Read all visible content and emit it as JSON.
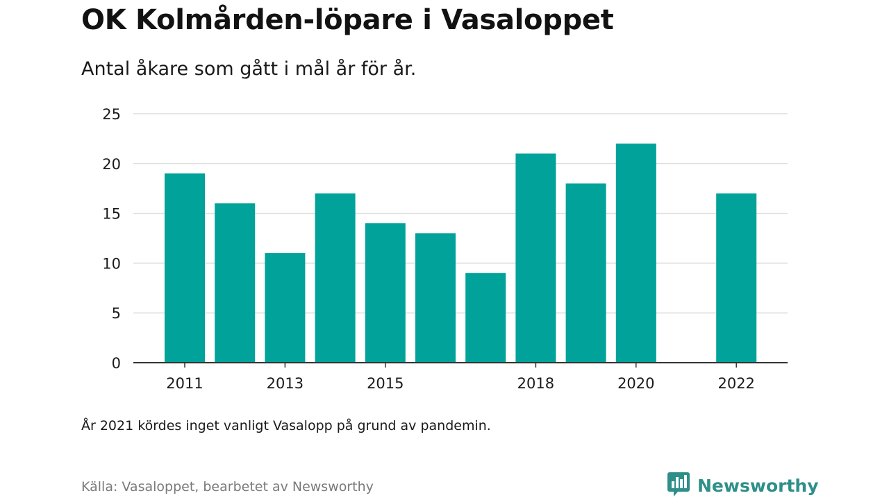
{
  "header": {
    "title": "OK Kolmården-löpare i Vasaloppet",
    "subtitle": "Antal åkare som gått i mål år för år."
  },
  "footer": {
    "note": "År 2021 kördes inget vanligt Vasalopp på grund av pandemin.",
    "source": "Källa: Vasaloppet, bearbetet av Newsworthy",
    "brand": "Newsworthy"
  },
  "colors": {
    "bar": "#00a29a",
    "grid": "#dddddd",
    "axis": "#333333",
    "brand": "#2e8f89"
  },
  "chart_data": {
    "type": "bar",
    "title": "OK Kolmården-löpare i Vasaloppet",
    "subtitle": "Antal åkare som gått i mål år för år.",
    "categories": [
      2011,
      2012,
      2013,
      2014,
      2015,
      2016,
      2017,
      2018,
      2019,
      2020,
      2021,
      2022
    ],
    "values": [
      19,
      16,
      11,
      17,
      14,
      13,
      9,
      21,
      18,
      22,
      null,
      17
    ],
    "x_tick_labels": [
      "2011",
      "2013",
      "2015",
      "2018",
      "2020",
      "2022"
    ],
    "y_ticks": [
      0,
      5,
      10,
      15,
      20,
      25
    ],
    "ylim": [
      0,
      25
    ],
    "grid": true,
    "legend": "none",
    "xlabel": "",
    "ylabel": ""
  }
}
